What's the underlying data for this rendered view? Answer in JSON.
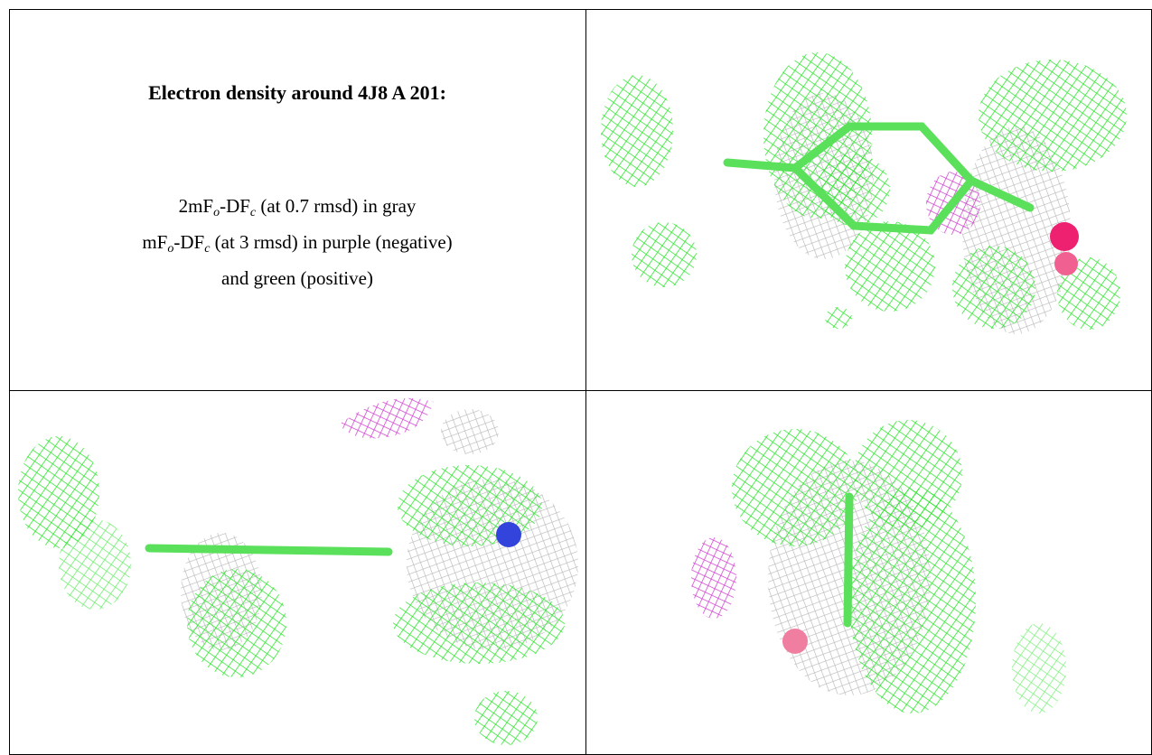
{
  "caption": {
    "title": "Electron density around 4J8 A 201:",
    "lines": [
      {
        "parts": [
          "2mF",
          "o",
          "-DF",
          "c",
          " (at 0.7 rmsd) in gray"
        ]
      },
      {
        "parts": [
          "mF",
          "o",
          "-DF",
          "c",
          " (at 3 rmsd) in purple (negative)"
        ]
      },
      {
        "parts": [
          "and green (positive)"
        ]
      }
    ]
  }
}
